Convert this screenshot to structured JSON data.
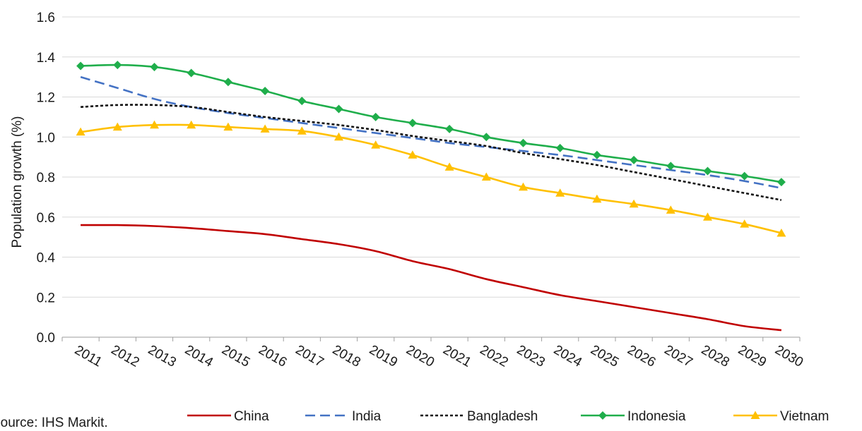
{
  "chart_data": {
    "type": "line",
    "ylabel": "Population growth (%)",
    "xlabel": "",
    "ylim": [
      0,
      1.6
    ],
    "y_ticks": [
      "0.0",
      "0.2",
      "0.4",
      "0.6",
      "0.8",
      "1.0",
      "1.2",
      "1.4",
      "1.6"
    ],
    "grid": "horizontal",
    "legend_position": "bottom",
    "categories": [
      "2011",
      "2012",
      "2013",
      "2014",
      "2015",
      "2016",
      "2017",
      "2018",
      "2019",
      "2020",
      "2021",
      "2022",
      "2023",
      "2024",
      "2025",
      "2026",
      "2027",
      "2028",
      "2029",
      "2030"
    ],
    "series": [
      {
        "name": "China",
        "color": "#c00000",
        "style": "solid",
        "marker": "none",
        "values": [
          0.56,
          0.56,
          0.555,
          0.545,
          0.53,
          0.515,
          0.49,
          0.465,
          0.43,
          0.38,
          0.34,
          0.29,
          0.25,
          0.21,
          0.18,
          0.15,
          0.12,
          0.09,
          0.055,
          0.035
        ]
      },
      {
        "name": "India",
        "color": "#4472c4",
        "style": "dashed",
        "marker": "none",
        "values": [
          1.3,
          1.245,
          1.19,
          1.15,
          1.12,
          1.095,
          1.07,
          1.045,
          1.02,
          0.995,
          0.97,
          0.95,
          0.93,
          0.91,
          0.885,
          0.86,
          0.835,
          0.81,
          0.78,
          0.745
        ]
      },
      {
        "name": "Bangladesh",
        "color": "#111111",
        "style": "dotted",
        "marker": "none",
        "values": [
          1.15,
          1.16,
          1.16,
          1.15,
          1.125,
          1.1,
          1.08,
          1.06,
          1.035,
          1.005,
          0.98,
          0.955,
          0.92,
          0.89,
          0.86,
          0.825,
          0.79,
          0.755,
          0.72,
          0.685
        ]
      },
      {
        "name": "Indonesia",
        "color": "#1fae4b",
        "style": "solid",
        "marker": "diamond",
        "values": [
          1.355,
          1.36,
          1.35,
          1.32,
          1.275,
          1.23,
          1.18,
          1.14,
          1.1,
          1.07,
          1.04,
          1.0,
          0.97,
          0.945,
          0.91,
          0.885,
          0.855,
          0.83,
          0.805,
          0.775
        ]
      },
      {
        "name": "Vietnam",
        "color": "#ffc000",
        "style": "solid",
        "marker": "triangle",
        "values": [
          1.025,
          1.05,
          1.06,
          1.06,
          1.05,
          1.04,
          1.03,
          1.0,
          0.96,
          0.91,
          0.85,
          0.8,
          0.75,
          0.72,
          0.69,
          0.665,
          0.635,
          0.6,
          0.565,
          0.52
        ]
      }
    ]
  },
  "footer": {
    "source": "Source: IHS Markit."
  }
}
